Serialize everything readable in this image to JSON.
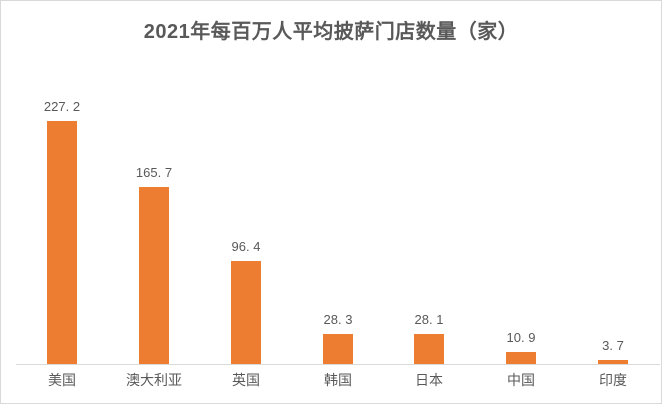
{
  "window": {
    "background": "#ffffff",
    "border_color": "#d9d9d9"
  },
  "chart_data": {
    "type": "bar",
    "title": "2021年每百万人平均披萨门店数量（家）",
    "categories": [
      "美国",
      "澳大利亚",
      "英国",
      "韩国",
      "日本",
      "中国",
      "印度"
    ],
    "values": [
      227.2,
      165.7,
      96.4,
      28.3,
      28.1,
      10.9,
      3.7
    ],
    "value_labels": [
      "227. 2",
      "165. 7",
      "96. 4",
      "28. 3",
      "28. 1",
      "10. 9",
      "3. 7"
    ],
    "xlabel": "",
    "ylabel": "",
    "ylim": [
      0,
      240
    ],
    "grid": false,
    "legend": false,
    "bar_color": "#ED7D31",
    "title_color": "#595959",
    "label_color": "#595959",
    "axis_line_color": "#d9d9d9"
  }
}
